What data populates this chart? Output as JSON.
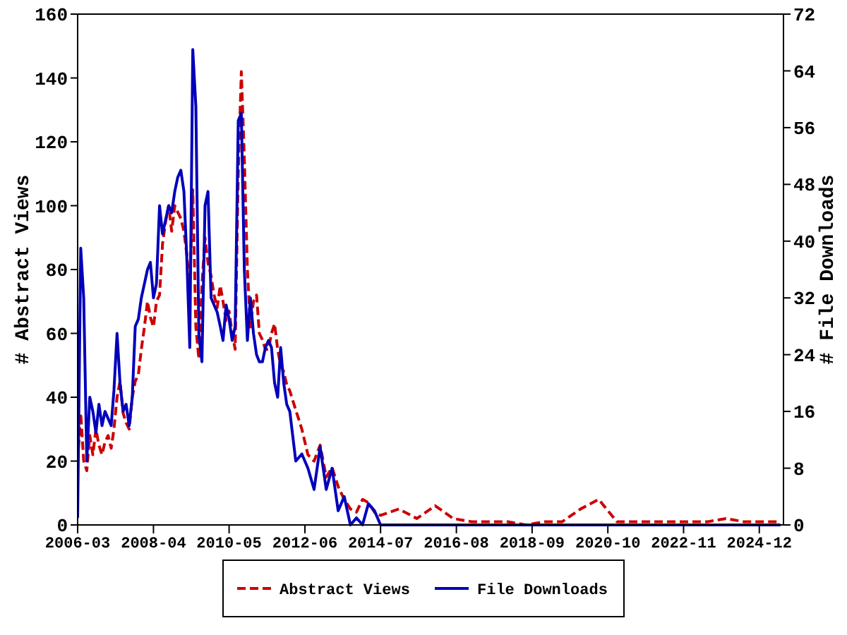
{
  "chart_data": {
    "type": "line",
    "ylabel": "# Abstract Views",
    "y2label": "# File Downloads",
    "x": [
      "2006-03",
      "2006-04",
      "2006-05",
      "2006-06",
      "2006-07",
      "2006-08",
      "2006-09",
      "2006-10",
      "2006-11",
      "2006-12",
      "2007-01",
      "2007-02",
      "2007-03",
      "2007-04",
      "2007-05",
      "2007-06",
      "2007-07",
      "2007-08",
      "2007-09",
      "2007-10",
      "2007-11",
      "2007-12",
      "2008-01",
      "2008-02",
      "2008-03",
      "2008-04",
      "2008-05",
      "2008-06",
      "2008-07",
      "2008-08",
      "2008-09",
      "2008-10",
      "2008-11",
      "2008-12",
      "2009-01",
      "2009-02",
      "2009-03",
      "2009-04",
      "2009-05",
      "2009-06",
      "2009-07",
      "2009-08",
      "2009-09",
      "2009-10",
      "2009-11",
      "2009-12",
      "2010-01",
      "2010-02",
      "2010-03",
      "2010-04",
      "2010-05",
      "2010-06",
      "2010-07",
      "2010-08",
      "2010-09",
      "2010-10",
      "2010-11",
      "2010-12",
      "2011-01",
      "2011-02",
      "2011-03",
      "2011-04",
      "2011-05",
      "2011-06",
      "2011-07",
      "2011-08",
      "2011-09",
      "2011-10",
      "2011-11",
      "2011-12",
      "2012-01",
      "2012-03",
      "2012-05",
      "2012-07",
      "2012-09",
      "2012-11",
      "2013-01",
      "2013-03",
      "2013-05",
      "2013-07",
      "2013-09",
      "2013-11",
      "2014-01",
      "2014-03",
      "2014-05",
      "2014-07",
      "2015-01",
      "2015-07",
      "2016-01",
      "2016-07",
      "2017-01",
      "2017-07",
      "2018-01",
      "2018-07",
      "2019-01",
      "2019-07",
      "2020-01",
      "2020-07",
      "2021-01",
      "2021-07",
      "2022-01",
      "2022-07",
      "2023-01",
      "2023-07",
      "2024-01",
      "2024-07",
      "2025-01",
      "2025-07"
    ],
    "series": [
      {
        "name": "Abstract Views",
        "color": "#cc0000",
        "line_style": "dashed",
        "values": [
          20,
          35,
          20,
          17,
          28,
          22,
          30,
          25,
          22,
          26,
          28,
          24,
          30,
          40,
          45,
          35,
          32,
          30,
          40,
          45,
          47,
          55,
          62,
          70,
          65,
          62,
          70,
          72,
          88,
          95,
          100,
          92,
          100,
          98,
          96,
          92,
          85,
          75,
          105,
          62,
          52,
          75,
          90,
          82,
          78,
          72,
          68,
          75,
          70,
          64,
          67,
          60,
          55,
          110,
          142,
          115,
          80,
          62,
          70,
          72,
          60,
          58,
          55,
          55,
          60,
          63,
          55,
          50,
          48,
          44,
          42,
          36,
          30,
          22,
          20,
          25,
          15,
          18,
          12,
          8,
          5,
          4,
          8,
          7,
          4,
          3,
          5,
          2,
          6,
          2,
          1,
          1,
          1,
          0,
          1,
          1,
          5,
          8,
          1,
          1,
          1,
          1,
          1,
          1,
          2,
          1,
          1,
          1
        ]
      },
      {
        "name": "File Downloads",
        "color": "#0000bb",
        "line_style": "solid",
        "axis": "y2",
        "values": [
          1,
          39,
          32,
          9,
          18,
          16,
          13,
          17,
          14,
          16,
          15,
          14,
          19,
          27,
          20,
          16,
          17,
          14,
          18,
          28,
          29,
          32,
          34,
          36,
          37,
          32,
          34,
          45,
          41,
          43,
          45,
          44,
          47,
          49,
          50,
          47,
          38,
          25,
          67,
          59,
          27,
          23,
          45,
          47,
          32,
          31,
          30,
          28,
          26,
          31,
          29,
          26,
          28,
          57,
          58,
          36,
          26,
          32,
          27,
          24,
          23,
          23,
          25,
          26,
          25,
          20,
          18,
          25,
          20,
          17,
          16,
          9,
          10,
          8,
          5,
          11,
          5,
          8,
          2,
          4,
          0,
          1,
          0,
          3,
          2,
          0,
          0,
          0,
          0,
          0,
          0,
          0,
          0,
          0,
          0,
          0,
          0,
          0,
          0,
          0,
          0,
          0,
          0,
          0,
          0,
          0,
          0,
          0
        ]
      }
    ],
    "xlim": [
      "2006-03",
      "2025-08"
    ],
    "xticks": [
      "2006-03",
      "2008-04",
      "2010-05",
      "2012-06",
      "2014-07",
      "2016-08",
      "2018-09",
      "2020-10",
      "2022-11",
      "2024-12"
    ],
    "ylim": [
      0,
      160
    ],
    "yticks": [
      0,
      20,
      40,
      60,
      80,
      100,
      120,
      140,
      160
    ],
    "y2lim": [
      0,
      72
    ],
    "y2ticks": [
      0,
      8,
      16,
      24,
      32,
      40,
      48,
      56,
      64,
      72
    ],
    "grid": false,
    "legend": "bottom",
    "marker": "none"
  }
}
